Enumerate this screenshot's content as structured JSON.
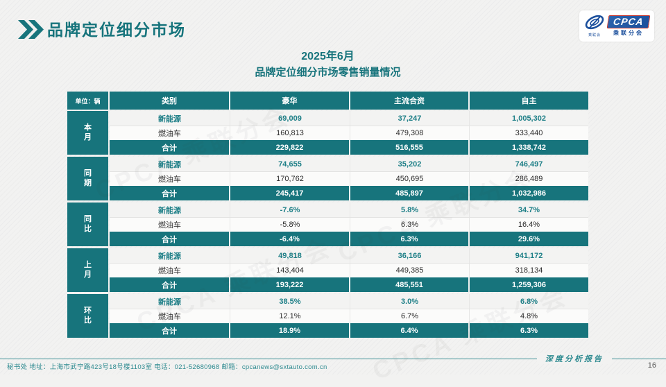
{
  "header": {
    "title": "品牌定位细分市场",
    "logo": {
      "wordmark": "CPCA",
      "subtext": "乘联分会",
      "emblem_caption": "乘联会",
      "brand_blue": "#1b4f9c",
      "brand_red": "#c8372e"
    }
  },
  "table_title": {
    "line1": "2025年6月",
    "line2": "品牌定位细分市场零售销量情况"
  },
  "table": {
    "unit_label": "单位：辆",
    "columns": [
      "类别",
      "豪华",
      "主流合资",
      "自主"
    ],
    "groups": [
      {
        "label": "本月",
        "rows": [
          {
            "category": "新能源",
            "type": "nev",
            "values": [
              "69,009",
              "37,247",
              "1,005,302"
            ]
          },
          {
            "category": "燃油车",
            "type": "fuel",
            "values": [
              "160,813",
              "479,308",
              "333,440"
            ]
          },
          {
            "category": "合计",
            "type": "total",
            "values": [
              "229,822",
              "516,555",
              "1,338,742"
            ]
          }
        ]
      },
      {
        "label": "同期",
        "rows": [
          {
            "category": "新能源",
            "type": "nev",
            "values": [
              "74,655",
              "35,202",
              "746,497"
            ]
          },
          {
            "category": "燃油车",
            "type": "fuel",
            "values": [
              "170,762",
              "450,695",
              "286,489"
            ]
          },
          {
            "category": "合计",
            "type": "total",
            "values": [
              "245,417",
              "485,897",
              "1,032,986"
            ]
          }
        ]
      },
      {
        "label": "同比",
        "rows": [
          {
            "category": "新能源",
            "type": "nev",
            "values": [
              "-7.6%",
              "5.8%",
              "34.7%"
            ]
          },
          {
            "category": "燃油车",
            "type": "fuel",
            "values": [
              "-5.8%",
              "6.3%",
              "16.4%"
            ]
          },
          {
            "category": "合计",
            "type": "total",
            "values": [
              "-6.4%",
              "6.3%",
              "29.6%"
            ]
          }
        ]
      },
      {
        "label": "上月",
        "rows": [
          {
            "category": "新能源",
            "type": "nev",
            "values": [
              "49,818",
              "36,166",
              "941,172"
            ]
          },
          {
            "category": "燃油车",
            "type": "fuel",
            "values": [
              "143,404",
              "449,385",
              "318,134"
            ]
          },
          {
            "category": "合计",
            "type": "total",
            "values": [
              "193,222",
              "485,551",
              "1,259,306"
            ]
          }
        ]
      },
      {
        "label": "环比",
        "rows": [
          {
            "category": "新能源",
            "type": "nev",
            "values": [
              "38.5%",
              "3.0%",
              "6.8%"
            ]
          },
          {
            "category": "燃油车",
            "type": "fuel",
            "values": [
              "12.1%",
              "6.7%",
              "4.8%"
            ]
          },
          {
            "category": "合计",
            "type": "total",
            "values": [
              "18.9%",
              "6.4%",
              "6.3%"
            ]
          }
        ]
      }
    ]
  },
  "watermark": "CPCA 乘联分会",
  "footer": {
    "contact": "秘书处  地址：上海市武宁路423号18号楼1103室  电话：021-52680968  邮箱：cpcanews@sxtauto.com.cn",
    "report_label": "深度分析报告",
    "page_number": "16"
  },
  "colors": {
    "accent_teal": "#17747C",
    "nev_text": "#1E7F87"
  }
}
